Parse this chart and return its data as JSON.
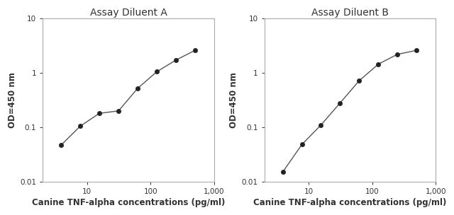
{
  "title_A": "Assay Diluent A",
  "title_B": "Assay Diluent B",
  "xlabel": "Canine TNF-alpha concentrations (pg/ml)",
  "ylabel": "OD=450 nm",
  "xlim": [
    2,
    1000
  ],
  "ylim": [
    0.01,
    10
  ],
  "x_A": [
    3.9,
    7.8,
    15.6,
    31.25,
    62.5,
    125,
    250,
    500
  ],
  "y_A": [
    0.047,
    0.105,
    0.18,
    0.2,
    0.52,
    1.05,
    1.72,
    2.6
  ],
  "x_B": [
    3.9,
    7.8,
    15.6,
    31.25,
    62.5,
    125,
    250,
    500
  ],
  "y_B": [
    0.015,
    0.048,
    0.11,
    0.28,
    0.72,
    1.45,
    2.2,
    2.6
  ],
  "line_color": "#555555",
  "marker_color": "#222222",
  "marker_size": 4.5,
  "title_color": "#333333",
  "label_color": "#333333",
  "tick_color": "#333333",
  "axis_color": "#aaaaaa",
  "title_fontsize": 10,
  "label_fontsize": 8.5,
  "tick_fontsize": 7.5
}
